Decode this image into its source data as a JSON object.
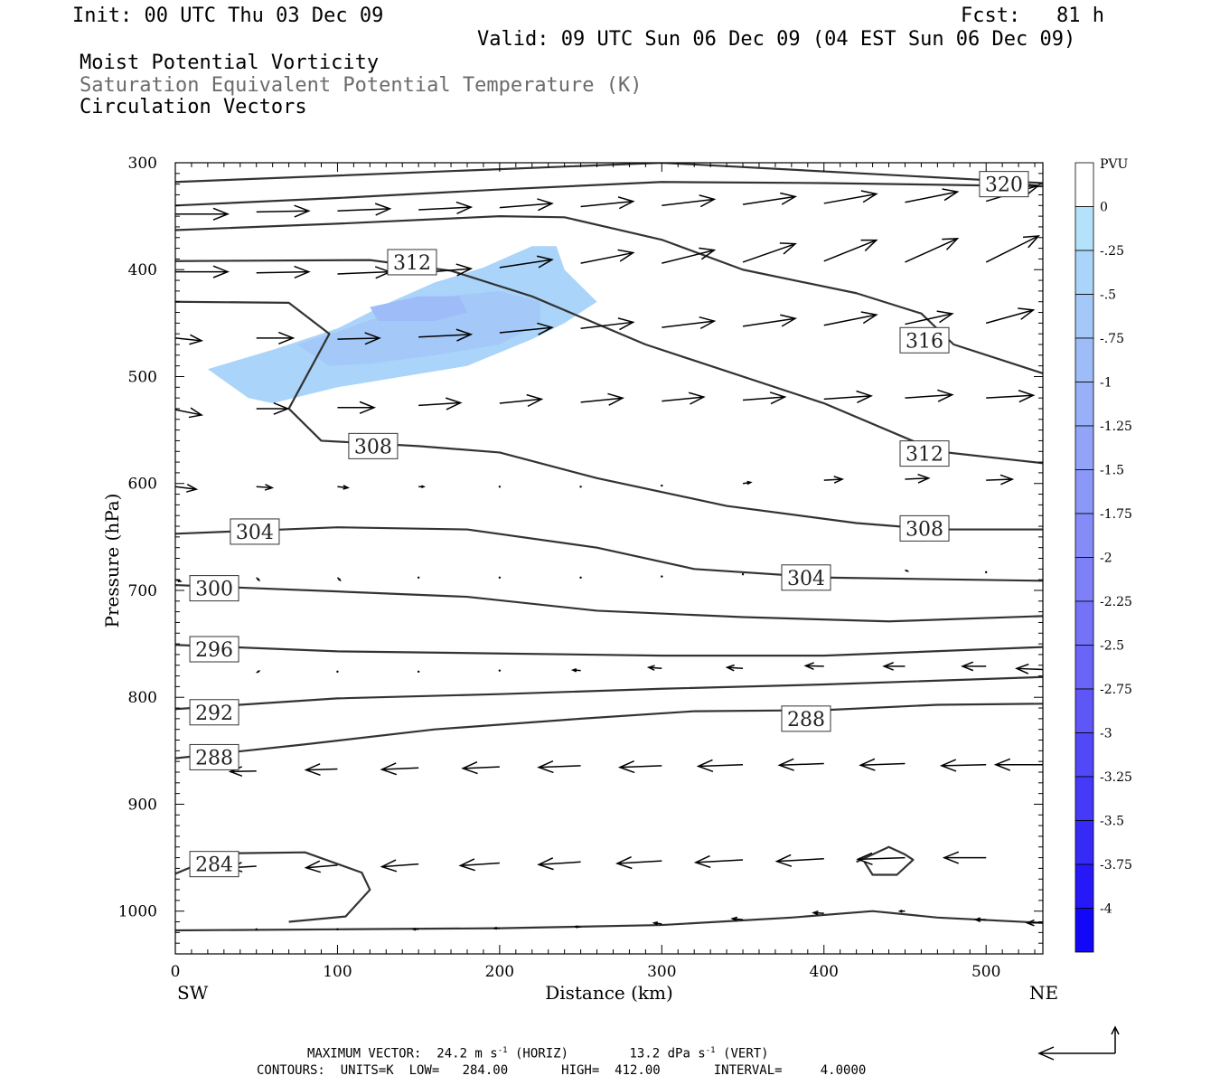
{
  "header": {
    "init": "Init: 00 UTC Thu 03 Dec 09",
    "fcst": "Fcst:   81 h",
    "valid": "Valid: 09 UTC Sun 06 Dec 09 (04 EST Sun 06 Dec 09)",
    "fields": [
      "Moist Potential Vorticity",
      "Saturation Equivalent Potential Temperature (K)",
      "Circulation Vectors"
    ]
  },
  "colorbar": {
    "unit": "PVU",
    "levels": [
      "0",
      "-.25",
      "-.5",
      "-.75",
      "-1",
      "-1.25",
      "-1.5",
      "-1.75",
      "-2",
      "-2.25",
      "-2.5",
      "-2.75",
      "-3",
      "-3.25",
      "-3.5",
      "-3.75",
      "-4"
    ],
    "colors": [
      "#ffffff",
      "#b4e2fa",
      "#aad4f9",
      "#a4c8f8",
      "#9ebcf8",
      "#98b0f7",
      "#92a4f7",
      "#8c98f7",
      "#868cf7",
      "#7e80f7",
      "#7472f7",
      "#6a64f7",
      "#5e56f7",
      "#5248f7",
      "#443af7",
      "#362af7",
      "#2618f7",
      "#1208f7"
    ]
  },
  "footer": {
    "max_vector": "MAXIMUM VECTOR:  24.2 m s",
    "max_vector_horiz": "(HORIZ)",
    "max_vector_vert": "13.2 dPa s",
    "max_vector_vert_tag": "(VERT)",
    "exponent": "-1",
    "contours": "CONTOURS:  UNITS=K  LOW=   284.00       HIGH=  412.00       INTERVAL=     4.0000"
  },
  "chart_data": {
    "type": "cross-section contour",
    "xlabel": "Distance (km)",
    "ylabel": "Pressure (hPa)",
    "x_left_label": "SW",
    "x_right_label": "NE",
    "xlim": [
      0,
      535
    ],
    "ylim": [
      1040,
      300
    ],
    "x_ticks": [
      0,
      100,
      200,
      300,
      400,
      500
    ],
    "y_ticks": [
      300,
      400,
      500,
      600,
      700,
      800,
      900,
      1000
    ],
    "contour_labels": [
      {
        "value": "320",
        "x": 511,
        "p": 320
      },
      {
        "value": "312",
        "x": 146,
        "p": 393
      },
      {
        "value": "316",
        "x": 462,
        "p": 466
      },
      {
        "value": "308",
        "x": 122,
        "p": 565
      },
      {
        "value": "312",
        "x": 462,
        "p": 572
      },
      {
        "value": "304",
        "x": 49,
        "p": 645
      },
      {
        "value": "308",
        "x": 462,
        "p": 642
      },
      {
        "value": "304",
        "x": 389,
        "p": 688
      },
      {
        "value": "300",
        "x": 24,
        "p": 698
      },
      {
        "value": "296",
        "x": 24,
        "p": 755
      },
      {
        "value": "292",
        "x": 24,
        "p": 814
      },
      {
        "value": "288",
        "x": 389,
        "p": 820
      },
      {
        "value": "288",
        "x": 24,
        "p": 856
      },
      {
        "value": "284",
        "x": 24,
        "p": 956
      }
    ],
    "contours": [
      [
        [
          0,
          318
        ],
        [
          200,
          306
        ],
        [
          300,
          300
        ],
        [
          535,
          319
        ]
      ],
      [
        [
          0,
          340
        ],
        [
          100,
          333
        ],
        [
          200,
          325
        ],
        [
          300,
          318
        ],
        [
          400,
          319
        ],
        [
          535,
          322
        ]
      ],
      [
        [
          0,
          363
        ],
        [
          100,
          357
        ],
        [
          200,
          350
        ],
        [
          240,
          351
        ],
        [
          300,
          372
        ],
        [
          350,
          400
        ],
        [
          420,
          422
        ],
        [
          460,
          441
        ],
        [
          480,
          470
        ],
        [
          535,
          497
        ]
      ],
      [
        [
          0,
          392
        ],
        [
          120,
          391
        ],
        [
          170,
          401
        ],
        [
          220,
          425
        ],
        [
          290,
          470
        ],
        [
          400,
          525
        ],
        [
          470,
          570
        ],
        [
          535,
          581
        ]
      ],
      [
        [
          0,
          430
        ],
        [
          70,
          431
        ],
        [
          95,
          460
        ],
        [
          70,
          530
        ],
        [
          90,
          560
        ],
        [
          150,
          565
        ],
        [
          200,
          571
        ],
        [
          260,
          595
        ],
        [
          340,
          621
        ],
        [
          420,
          637
        ],
        [
          470,
          643
        ],
        [
          535,
          643
        ]
      ],
      [
        [
          0,
          647
        ],
        [
          100,
          641
        ],
        [
          180,
          643
        ],
        [
          260,
          660
        ],
        [
          320,
          680
        ],
        [
          400,
          688
        ],
        [
          535,
          691
        ]
      ],
      [
        [
          0,
          695
        ],
        [
          100,
          701
        ],
        [
          180,
          706
        ],
        [
          260,
          719
        ],
        [
          350,
          725
        ],
        [
          440,
          729
        ],
        [
          535,
          724
        ]
      ],
      [
        [
          0,
          751
        ],
        [
          100,
          757
        ],
        [
          200,
          759
        ],
        [
          300,
          761
        ],
        [
          400,
          761
        ],
        [
          535,
          753
        ]
      ],
      [
        [
          0,
          811
        ],
        [
          100,
          801
        ],
        [
          200,
          797
        ],
        [
          300,
          792
        ],
        [
          400,
          788
        ],
        [
          535,
          781
        ]
      ],
      [
        [
          0,
          857
        ],
        [
          80,
          844
        ],
        [
          160,
          830
        ],
        [
          250,
          820
        ],
        [
          320,
          813
        ],
        [
          400,
          812
        ],
        [
          470,
          807
        ],
        [
          535,
          806
        ]
      ],
      [
        [
          0,
          965
        ],
        [
          30,
          946
        ],
        [
          80,
          945
        ],
        [
          115,
          964
        ],
        [
          120,
          980
        ],
        [
          105,
          1005
        ],
        [
          70,
          1010
        ]
      ],
      [
        [
          420,
          954
        ],
        [
          440,
          940
        ],
        [
          450,
          947
        ],
        [
          455,
          952
        ],
        [
          445,
          966
        ],
        [
          430,
          966
        ],
        [
          425,
          954
        ]
      ],
      [
        [
          0,
          1018
        ],
        [
          100,
          1017
        ],
        [
          200,
          1016
        ],
        [
          300,
          1013
        ],
        [
          380,
          1006
        ],
        [
          430,
          1000
        ],
        [
          470,
          1006
        ],
        [
          535,
          1011
        ]
      ]
    ],
    "mpv_regions": [
      {
        "level": "-.25",
        "polygon": [
          [
            20,
            493
          ],
          [
            60,
            475
          ],
          [
            100,
            455
          ],
          [
            130,
            432
          ],
          [
            160,
            412
          ],
          [
            190,
            398
          ],
          [
            220,
            378
          ],
          [
            235,
            378
          ],
          [
            240,
            400
          ],
          [
            260,
            430
          ],
          [
            240,
            450
          ],
          [
            220,
            465
          ],
          [
            180,
            490
          ],
          [
            140,
            500
          ],
          [
            100,
            510
          ],
          [
            60,
            525
          ],
          [
            45,
            520
          ]
        ]
      },
      {
        "level": "-.5",
        "polygon": [
          [
            75,
            470
          ],
          [
            100,
            458
          ],
          [
            130,
            442
          ],
          [
            160,
            426
          ],
          [
            200,
            420
          ],
          [
            225,
            430
          ],
          [
            225,
            450
          ],
          [
            200,
            470
          ],
          [
            160,
            480
          ],
          [
            120,
            488
          ],
          [
            95,
            490
          ]
        ]
      },
      {
        "level": "-.75",
        "polygon": [
          [
            120,
            435
          ],
          [
            150,
            425
          ],
          [
            175,
            425
          ],
          [
            180,
            440
          ],
          [
            160,
            448
          ],
          [
            125,
            448
          ]
        ]
      }
    ],
    "vectors": [
      {
        "x": 0,
        "p": 348,
        "u": 1,
        "v": 0.0
      },
      {
        "x": 50,
        "p": 346,
        "u": 1,
        "v": 0.02
      },
      {
        "x": 100,
        "p": 345,
        "u": 1,
        "v": 0.04
      },
      {
        "x": 150,
        "p": 344,
        "u": 1,
        "v": 0.05
      },
      {
        "x": 200,
        "p": 342,
        "u": 1,
        "v": 0.08
      },
      {
        "x": 250,
        "p": 341,
        "u": 1,
        "v": 0.1
      },
      {
        "x": 300,
        "p": 340,
        "u": 1,
        "v": 0.12
      },
      {
        "x": 350,
        "p": 339,
        "u": 1,
        "v": 0.15
      },
      {
        "x": 400,
        "p": 338,
        "u": 1,
        "v": 0.18
      },
      {
        "x": 450,
        "p": 337,
        "u": 1,
        "v": 0.2
      },
      {
        "x": 500,
        "p": 336,
        "u": 1,
        "v": 0.3
      },
      {
        "x": 0,
        "p": 402,
        "u": 1,
        "v": 0.0
      },
      {
        "x": 50,
        "p": 403,
        "u": 1,
        "v": 0.02
      },
      {
        "x": 100,
        "p": 404,
        "u": 1,
        "v": 0.04
      },
      {
        "x": 150,
        "p": 403,
        "u": 1,
        "v": 0.08
      },
      {
        "x": 200,
        "p": 398,
        "u": 1,
        "v": 0.15
      },
      {
        "x": 250,
        "p": 394,
        "u": 1,
        "v": 0.2
      },
      {
        "x": 300,
        "p": 394,
        "u": 1,
        "v": 0.25
      },
      {
        "x": 350,
        "p": 393,
        "u": 1,
        "v": 0.35
      },
      {
        "x": 400,
        "p": 392,
        "u": 1,
        "v": 0.4
      },
      {
        "x": 450,
        "p": 393,
        "u": 1,
        "v": 0.45
      },
      {
        "x": 500,
        "p": 393,
        "u": 1,
        "v": 0.5
      },
      {
        "x": 0,
        "p": 464,
        "u": 0.5,
        "v": -0.05
      },
      {
        "x": 50,
        "p": 464,
        "u": 0.7,
        "v": 0.0
      },
      {
        "x": 100,
        "p": 465,
        "u": 0.8,
        "v": 0.02
      },
      {
        "x": 150,
        "p": 463,
        "u": 1,
        "v": 0.05
      },
      {
        "x": 200,
        "p": 459,
        "u": 1,
        "v": 0.1
      },
      {
        "x": 250,
        "p": 455,
        "u": 1,
        "v": 0.12
      },
      {
        "x": 300,
        "p": 454,
        "u": 1,
        "v": 0.12
      },
      {
        "x": 350,
        "p": 453,
        "u": 1,
        "v": 0.15
      },
      {
        "x": 400,
        "p": 452,
        "u": 1,
        "v": 0.2
      },
      {
        "x": 450,
        "p": 451,
        "u": 0.9,
        "v": 0.2
      },
      {
        "x": 500,
        "p": 450,
        "u": 0.9,
        "v": 0.25
      },
      {
        "x": 0,
        "p": 531,
        "u": 0.5,
        "v": -0.1
      },
      {
        "x": 50,
        "p": 530,
        "u": 0.6,
        "v": 0.0
      },
      {
        "x": 100,
        "p": 529,
        "u": 0.7,
        "v": 0.0
      },
      {
        "x": 150,
        "p": 527,
        "u": 0.8,
        "v": 0.05
      },
      {
        "x": 200,
        "p": 525,
        "u": 0.8,
        "v": 0.08
      },
      {
        "x": 250,
        "p": 524,
        "u": 0.8,
        "v": 0.08
      },
      {
        "x": 300,
        "p": 523,
        "u": 0.8,
        "v": 0.08
      },
      {
        "x": 350,
        "p": 522,
        "u": 0.8,
        "v": 0.06
      },
      {
        "x": 400,
        "p": 521,
        "u": 0.9,
        "v": 0.06
      },
      {
        "x": 450,
        "p": 520,
        "u": 0.9,
        "v": 0.06
      },
      {
        "x": 500,
        "p": 520,
        "u": 0.9,
        "v": 0.05
      },
      {
        "x": 0,
        "p": 603,
        "u": 0.4,
        "v": -0.05
      },
      {
        "x": 50,
        "p": 603,
        "u": 0.3,
        "v": -0.02
      },
      {
        "x": 100,
        "p": 603,
        "u": 0.2,
        "v": -0.02
      },
      {
        "x": 150,
        "p": 603,
        "u": 0.1,
        "v": 0
      },
      {
        "x": 200,
        "p": 603,
        "u": 0.05,
        "v": 0
      },
      {
        "x": 250,
        "p": 603,
        "u": 0.02,
        "v": 0
      },
      {
        "x": 300,
        "p": 602,
        "u": 0.03,
        "v": 0
      },
      {
        "x": 350,
        "p": 600,
        "u": 0.15,
        "v": 0.02
      },
      {
        "x": 400,
        "p": 597,
        "u": 0.35,
        "v": 0.02
      },
      {
        "x": 450,
        "p": 596,
        "u": 0.45,
        "v": 0.02
      },
      {
        "x": 500,
        "p": 597,
        "u": 0.5,
        "v": 0.02
      },
      {
        "x": 0,
        "p": 690,
        "u": 0.1,
        "v": -0.03
      },
      {
        "x": 50,
        "p": 688,
        "u": 0.05,
        "v": -0.05
      },
      {
        "x": 100,
        "p": 688,
        "u": 0.05,
        "v": -0.05
      },
      {
        "x": 150,
        "p": 688,
        "u": 0.02,
        "v": -0.02
      },
      {
        "x": 200,
        "p": 688,
        "u": 0.01,
        "v": 0
      },
      {
        "x": 250,
        "p": 688,
        "u": 0.01,
        "v": 0
      },
      {
        "x": 300,
        "p": 687,
        "u": 0.01,
        "v": 0
      },
      {
        "x": 350,
        "p": 685,
        "u": 0.01,
        "v": 0
      },
      {
        "x": 400,
        "p": 683,
        "u": 0.01,
        "v": 0
      },
      {
        "x": 450,
        "p": 681,
        "u": 0.05,
        "v": -0.02
      },
      {
        "x": 500,
        "p": 683,
        "u": 0.05,
        "v": 0
      },
      {
        "x": 50,
        "p": 777,
        "u": 0.05,
        "v": 0.03
      },
      {
        "x": 100,
        "p": 776,
        "u": 0.05,
        "v": 0.01
      },
      {
        "x": 150,
        "p": 776,
        "u": 0.05,
        "v": 0
      },
      {
        "x": 200,
        "p": 775,
        "u": -0.05,
        "v": 0
      },
      {
        "x": 250,
        "p": 775,
        "u": -0.15,
        "v": 0.01
      },
      {
        "x": 300,
        "p": 773,
        "u": -0.25,
        "v": 0.02
      },
      {
        "x": 350,
        "p": 773,
        "u": -0.3,
        "v": 0.02
      },
      {
        "x": 400,
        "p": 771,
        "u": -0.35,
        "v": 0.01
      },
      {
        "x": 450,
        "p": 771,
        "u": -0.4,
        "v": 0.0
      },
      {
        "x": 500,
        "p": 771,
        "u": -0.45,
        "v": 0.0
      },
      {
        "x": 535,
        "p": 774,
        "u": -0.5,
        "v": 0.02
      },
      {
        "x": 50,
        "p": 869,
        "u": -0.5,
        "v": -0.01
      },
      {
        "x": 100,
        "p": 867,
        "u": -0.6,
        "v": -0.02
      },
      {
        "x": 150,
        "p": 866,
        "u": -0.7,
        "v": -0.03
      },
      {
        "x": 200,
        "p": 865,
        "u": -0.7,
        "v": -0.03
      },
      {
        "x": 250,
        "p": 864,
        "u": -0.8,
        "v": -0.03
      },
      {
        "x": 300,
        "p": 864,
        "u": -0.8,
        "v": -0.03
      },
      {
        "x": 350,
        "p": 863,
        "u": -0.85,
        "v": -0.03
      },
      {
        "x": 400,
        "p": 862,
        "u": -0.85,
        "v": -0.03
      },
      {
        "x": 450,
        "p": 862,
        "u": -0.85,
        "v": -0.03
      },
      {
        "x": 500,
        "p": 863,
        "u": -0.85,
        "v": -0.02
      },
      {
        "x": 535,
        "p": 863,
        "u": -0.9,
        "v": 0.0
      },
      {
        "x": 50,
        "p": 958,
        "u": -0.5,
        "v": -0.03
      },
      {
        "x": 100,
        "p": 957,
        "u": -0.6,
        "v": -0.05
      },
      {
        "x": 150,
        "p": 956,
        "u": -0.7,
        "v": -0.05
      },
      {
        "x": 200,
        "p": 955,
        "u": -0.75,
        "v": -0.05
      },
      {
        "x": 250,
        "p": 954,
        "u": -0.8,
        "v": -0.05
      },
      {
        "x": 300,
        "p": 953,
        "u": -0.85,
        "v": -0.05
      },
      {
        "x": 350,
        "p": 952,
        "u": -0.9,
        "v": -0.05
      },
      {
        "x": 400,
        "p": 951,
        "u": -0.9,
        "v": -0.05
      },
      {
        "x": 450,
        "p": 950,
        "u": -0.9,
        "v": -0.03
      },
      {
        "x": 500,
        "p": 950,
        "u": -0.8,
        "v": 0.0
      },
      {
        "x": 50,
        "p": 1017,
        "u": 0.05,
        "v": 0.0
      },
      {
        "x": 100,
        "p": 1017,
        "u": -0.05,
        "v": 0.0
      },
      {
        "x": 150,
        "p": 1017,
        "u": -0.1,
        "v": 0.0
      },
      {
        "x": 200,
        "p": 1016,
        "u": -0.1,
        "v": 0.0
      },
      {
        "x": 250,
        "p": 1015,
        "u": -0.1,
        "v": 0.01
      },
      {
        "x": 300,
        "p": 1012,
        "u": -0.15,
        "v": 0.02
      },
      {
        "x": 350,
        "p": 1008,
        "u": -0.2,
        "v": 0.02
      },
      {
        "x": 400,
        "p": 1002,
        "u": -0.2,
        "v": 0.01
      },
      {
        "x": 450,
        "p": 1000,
        "u": -0.1,
        "v": 0.0
      },
      {
        "x": 500,
        "p": 1008,
        "u": -0.2,
        "v": 0.0
      },
      {
        "x": 535,
        "p": 1011,
        "u": -0.3,
        "v": 0.0
      }
    ]
  }
}
